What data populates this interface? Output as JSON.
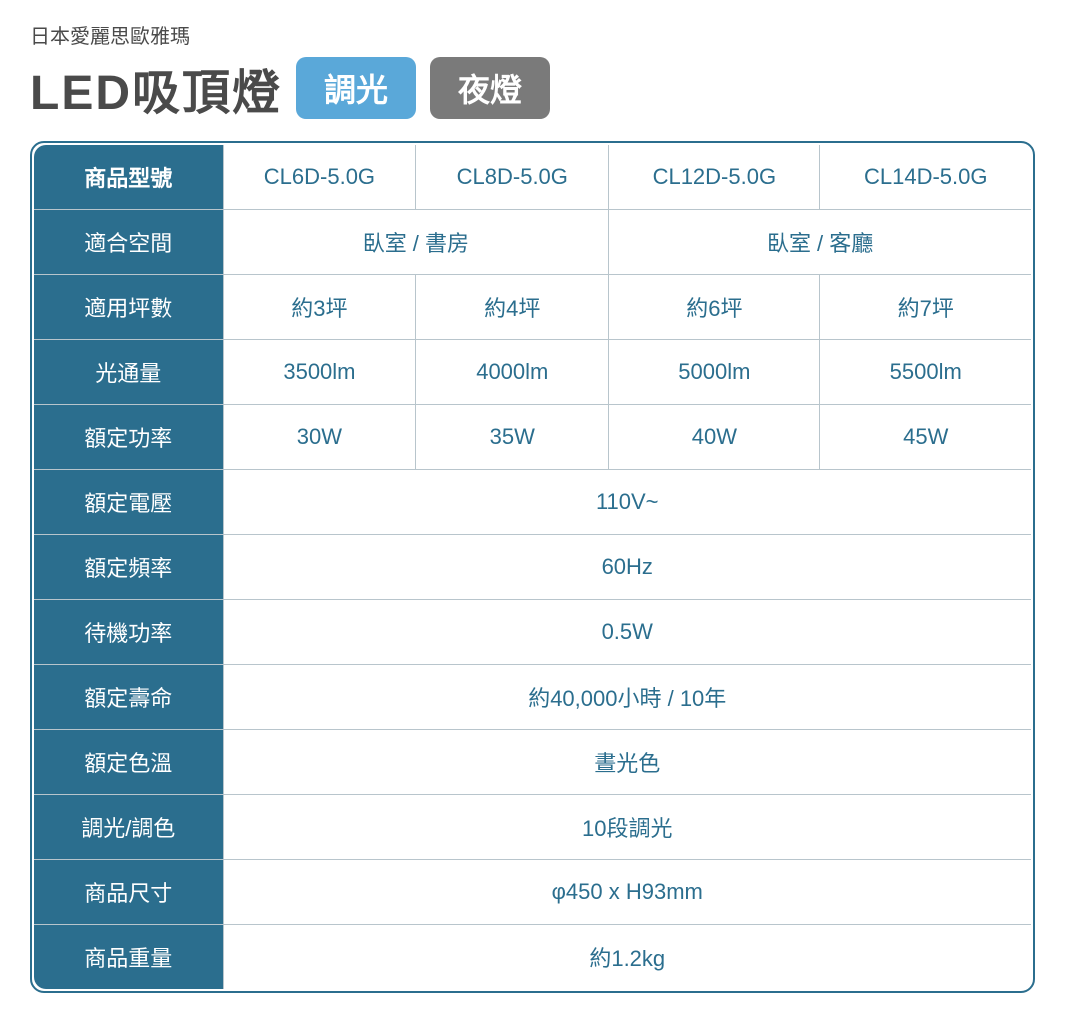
{
  "header": {
    "subtitle": "日本愛麗思歐雅瑪",
    "main_title": "LED吸頂燈",
    "badge1": {
      "text": "調光",
      "bg_color": "#5aa8d9"
    },
    "badge2": {
      "text": "夜燈",
      "bg_color": "#7a7a7a"
    }
  },
  "table": {
    "header_bg_color": "#2b6e8e",
    "header_text_color": "#ffffff",
    "border_color": "#2b6e8e",
    "cell_border_color": "#b8c5cc",
    "cell_text_color": "#2b6e8e",
    "rows": {
      "model_label": "商品型號",
      "models": [
        "CL6D-5.0G",
        "CL8D-5.0G",
        "CL12D-5.0G",
        "CL14D-5.0G"
      ],
      "space_label": "適合空間",
      "space_values": [
        "臥室 / 書房",
        "臥室 / 客廳"
      ],
      "area_label": "適用坪數",
      "area_values": [
        "約3坪",
        "約4坪",
        "約6坪",
        "約7坪"
      ],
      "lumen_label": "光通量",
      "lumen_values": [
        "3500lm",
        "4000lm",
        "5000lm",
        "5500lm"
      ],
      "power_label": "額定功率",
      "power_values": [
        "30W",
        "35W",
        "40W",
        "45W"
      ],
      "voltage_label": "額定電壓",
      "voltage_value": "110V~",
      "freq_label": "額定頻率",
      "freq_value": "60Hz",
      "standby_label": "待機功率",
      "standby_value": "0.5W",
      "lifespan_label": "額定壽命",
      "lifespan_value": "約40,000小時 / 10年",
      "color_temp_label": "額定色溫",
      "color_temp_value": "晝光色",
      "dimming_label": "調光/調色",
      "dimming_value": "10段調光",
      "size_label": "商品尺寸",
      "size_value": "φ450 x H93mm",
      "weight_label": "商品重量",
      "weight_value": "約1.2kg"
    }
  }
}
